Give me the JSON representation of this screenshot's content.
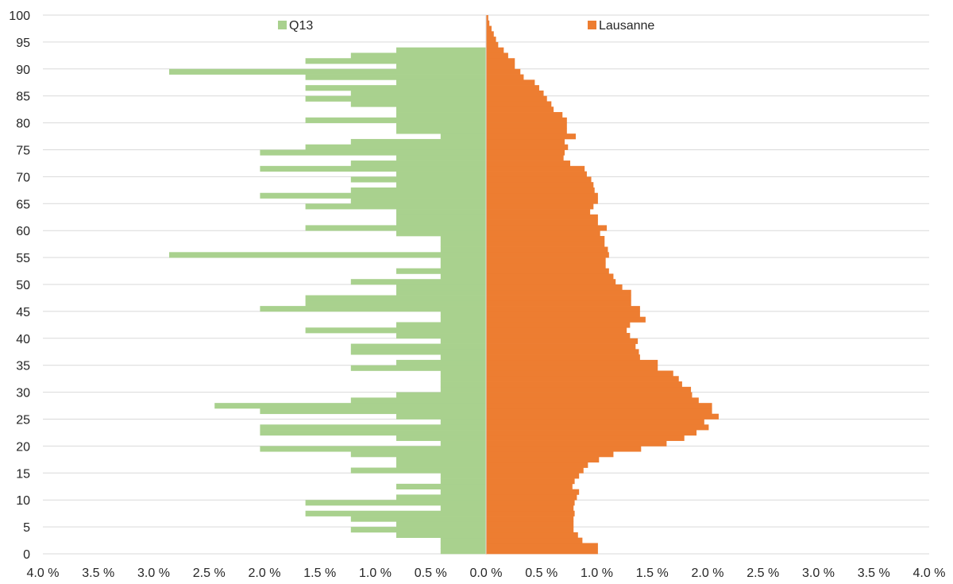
{
  "chart_data": {
    "type": "bar",
    "orientation": "horizontal",
    "layout": "population-pyramid",
    "y_axis": {
      "range": [
        0,
        100
      ],
      "ticks": [
        "0",
        "5",
        "10",
        "15",
        "20",
        "25",
        "30",
        "35",
        "40",
        "45",
        "50",
        "55",
        "60",
        "65",
        "70",
        "75",
        "80",
        "85",
        "90",
        "95",
        "100"
      ]
    },
    "x_axis": {
      "range": [
        -4.0,
        4.0
      ],
      "ticks": [
        -4,
        -3.5,
        -3,
        -2.5,
        -2,
        -1.5,
        -1,
        -0.5,
        0,
        0.5,
        1,
        1.5,
        2,
        2.5,
        3,
        3.5,
        4
      ],
      "tick_labels": [
        "4.0 %",
        "3.5 %",
        "3.0 %",
        "2.5 %",
        "2.0 %",
        "1.5 %",
        "1.0 %",
        "0.5 %",
        "0.0 %",
        "0.5 %",
        "1.0 %",
        "1.5 %",
        "2.0 %",
        "2.5 %",
        "3.0 %",
        "3.5 %",
        "4.0 %"
      ]
    },
    "grid": "horizontal",
    "legend_placement": "top",
    "ages": [
      0,
      1,
      2,
      3,
      4,
      5,
      6,
      7,
      8,
      9,
      10,
      11,
      12,
      13,
      14,
      15,
      16,
      17,
      18,
      19,
      20,
      21,
      22,
      23,
      24,
      25,
      26,
      27,
      28,
      29,
      30,
      31,
      32,
      33,
      34,
      35,
      36,
      37,
      38,
      39,
      40,
      41,
      42,
      43,
      44,
      45,
      46,
      47,
      48,
      49,
      50,
      51,
      52,
      53,
      54,
      55,
      56,
      57,
      58,
      59,
      60,
      61,
      62,
      63,
      64,
      65,
      66,
      67,
      68,
      69,
      70,
      71,
      72,
      73,
      74,
      75,
      76,
      77,
      78,
      79,
      80,
      81,
      82,
      83,
      84,
      85,
      86,
      87,
      88,
      89,
      90,
      91,
      92,
      93,
      94,
      95,
      96,
      97,
      98,
      99
    ],
    "series": [
      {
        "name": "Q13",
        "side": "left",
        "color": "#a9d18e",
        "values": [
          0.41,
          0.41,
          0.41,
          0.81,
          1.22,
          0.81,
          1.22,
          1.63,
          0.41,
          1.63,
          0.81,
          0.41,
          0.81,
          0.41,
          0.41,
          1.22,
          0.81,
          0.81,
          1.22,
          2.04,
          0.41,
          0.81,
          2.04,
          2.04,
          0.41,
          0.81,
          2.04,
          2.45,
          1.22,
          0.81,
          0.41,
          0.41,
          0.41,
          0.41,
          1.22,
          0.81,
          0.41,
          1.22,
          1.22,
          0.41,
          0.81,
          1.63,
          0.81,
          0.41,
          0.41,
          2.04,
          1.63,
          1.63,
          0.81,
          0.81,
          1.22,
          0.41,
          0.81,
          0.41,
          0.41,
          2.86,
          0.41,
          0.41,
          0.41,
          0.81,
          1.63,
          0.81,
          0.81,
          0.81,
          1.63,
          1.22,
          2.04,
          1.22,
          0.81,
          1.22,
          0.81,
          2.04,
          1.22,
          0.81,
          2.04,
          1.63,
          1.22,
          0.41,
          0.81,
          0.81,
          1.63,
          0.81,
          0.81,
          1.22,
          1.63,
          1.22,
          1.63,
          0.81,
          1.63,
          2.86,
          0.81,
          1.63,
          1.22,
          0.81,
          0,
          0,
          0,
          0,
          0,
          0
        ]
      },
      {
        "name": "Lausanne",
        "side": "right",
        "color": "#ed7d31",
        "values": [
          1.01,
          1.01,
          0.87,
          0.83,
          0.79,
          0.79,
          0.79,
          0.8,
          0.79,
          0.8,
          0.82,
          0.84,
          0.78,
          0.8,
          0.84,
          0.88,
          0.92,
          1.02,
          1.15,
          1.4,
          1.63,
          1.79,
          1.9,
          2.01,
          1.97,
          2.1,
          2.04,
          2.04,
          1.92,
          1.86,
          1.85,
          1.77,
          1.74,
          1.69,
          1.55,
          1.55,
          1.39,
          1.38,
          1.35,
          1.37,
          1.3,
          1.27,
          1.3,
          1.44,
          1.39,
          1.39,
          1.31,
          1.31,
          1.31,
          1.23,
          1.17,
          1.15,
          1.11,
          1.08,
          1.08,
          1.11,
          1.1,
          1.07,
          1.07,
          1.03,
          1.09,
          1.01,
          1.01,
          0.94,
          0.97,
          1.01,
          1.01,
          0.98,
          0.97,
          0.95,
          0.91,
          0.89,
          0.76,
          0.7,
          0.71,
          0.74,
          0.71,
          0.81,
          0.73,
          0.73,
          0.73,
          0.69,
          0.61,
          0.59,
          0.55,
          0.52,
          0.48,
          0.44,
          0.34,
          0.31,
          0.26,
          0.26,
          0.2,
          0.16,
          0.11,
          0.09,
          0.07,
          0.05,
          0.03,
          0.02
        ]
      }
    ]
  }
}
